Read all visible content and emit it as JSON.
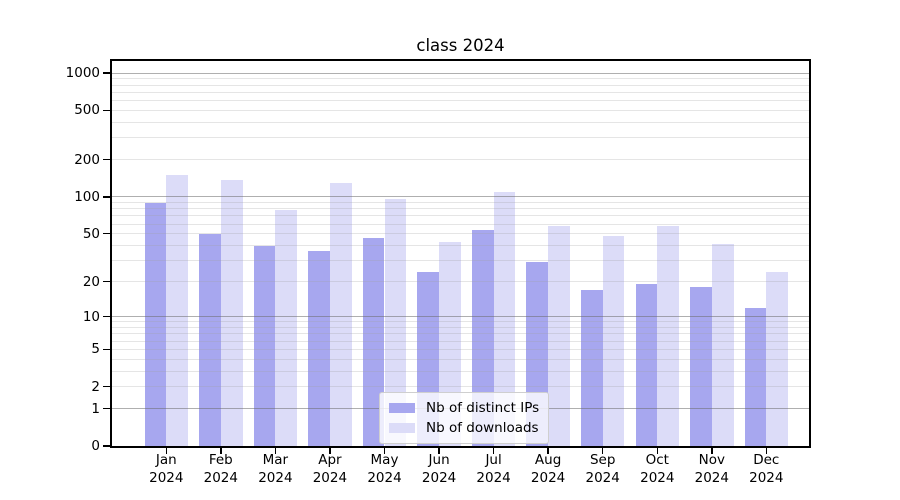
{
  "figure": {
    "background": "#ffffff"
  },
  "chart_data": {
    "type": "bar",
    "title": "class 2024",
    "categories": [
      {
        "month": "Jan",
        "year": "2024"
      },
      {
        "month": "Feb",
        "year": "2024"
      },
      {
        "month": "Mar",
        "year": "2024"
      },
      {
        "month": "Apr",
        "year": "2024"
      },
      {
        "month": "May",
        "year": "2024"
      },
      {
        "month": "Jun",
        "year": "2024"
      },
      {
        "month": "Jul",
        "year": "2024"
      },
      {
        "month": "Aug",
        "year": "2024"
      },
      {
        "month": "Sep",
        "year": "2024"
      },
      {
        "month": "Oct",
        "year": "2024"
      },
      {
        "month": "Nov",
        "year": "2024"
      },
      {
        "month": "Dec",
        "year": "2024"
      }
    ],
    "series": [
      {
        "name": "Nb of distinct IPs",
        "color": "#a7a7ef",
        "values": [
          90,
          50,
          40,
          36,
          46,
          24,
          54,
          29,
          17,
          19,
          18,
          12
        ]
      },
      {
        "name": "Nb of downloads",
        "color": "#dcdcf8",
        "values": [
          150,
          137,
          78,
          130,
          97,
          43,
          110,
          58,
          48,
          58,
          41,
          24
        ]
      }
    ],
    "yscale": "log1p",
    "ylim": [
      0,
      1250
    ],
    "y_ticks": [
      {
        "value": 0,
        "label": "0"
      },
      {
        "value": 1,
        "label": "1"
      },
      {
        "value": 2,
        "label": "2"
      },
      {
        "value": 5,
        "label": "5"
      },
      {
        "value": 10,
        "label": "10"
      },
      {
        "value": 20,
        "label": "20"
      },
      {
        "value": 50,
        "label": "50"
      },
      {
        "value": 100,
        "label": "100"
      },
      {
        "value": 200,
        "label": "200"
      },
      {
        "value": 500,
        "label": "500"
      },
      {
        "value": 1000,
        "label": "1000"
      }
    ],
    "y_major_gridlines": [
      1,
      10,
      100,
      1000
    ],
    "y_minor_gridlines": [
      2,
      3,
      4,
      5,
      6,
      7,
      8,
      9,
      20,
      30,
      40,
      50,
      60,
      70,
      80,
      90,
      200,
      300,
      400,
      500,
      600,
      700,
      800,
      900
    ],
    "grid": true,
    "legend_position": "lower center"
  }
}
